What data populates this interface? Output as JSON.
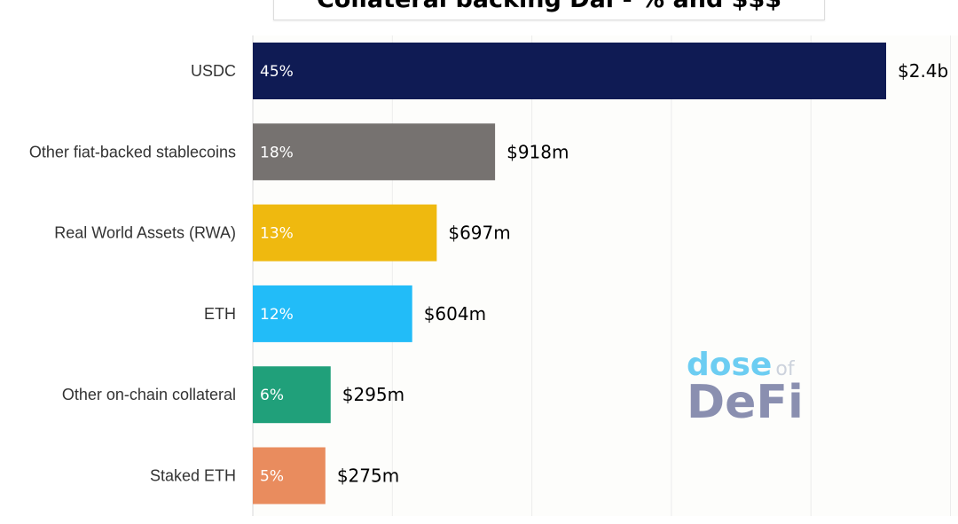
{
  "chart_data": {
    "type": "bar",
    "orientation": "horizontal",
    "title": "Collateral backing Dai - % and $$$",
    "categories": [
      "USDC",
      "Other fiat-backed stablecoins",
      "Real World Assets (RWA)",
      "ETH",
      "Other on-chain collateral",
      "Staked ETH"
    ],
    "values_musd": [
      2400,
      918,
      697,
      604,
      295,
      275
    ],
    "percent_labels": [
      "45%",
      "18%",
      "13%",
      "12%",
      "6%",
      "5%"
    ],
    "value_labels": [
      "$2.4b",
      "$918m",
      "$697m",
      "$604m",
      "$295m",
      "$275m"
    ],
    "colors": [
      "#0f1b54",
      "#767270",
      "#efb90f",
      "#22bcf8",
      "#20a07a",
      "#e98c5e"
    ],
    "xlim": [
      0,
      2400
    ],
    "grid": true,
    "xlabel": "",
    "ylabel": ""
  },
  "watermark": {
    "line1": "dose",
    "of": "of",
    "line2": "DeFi"
  }
}
